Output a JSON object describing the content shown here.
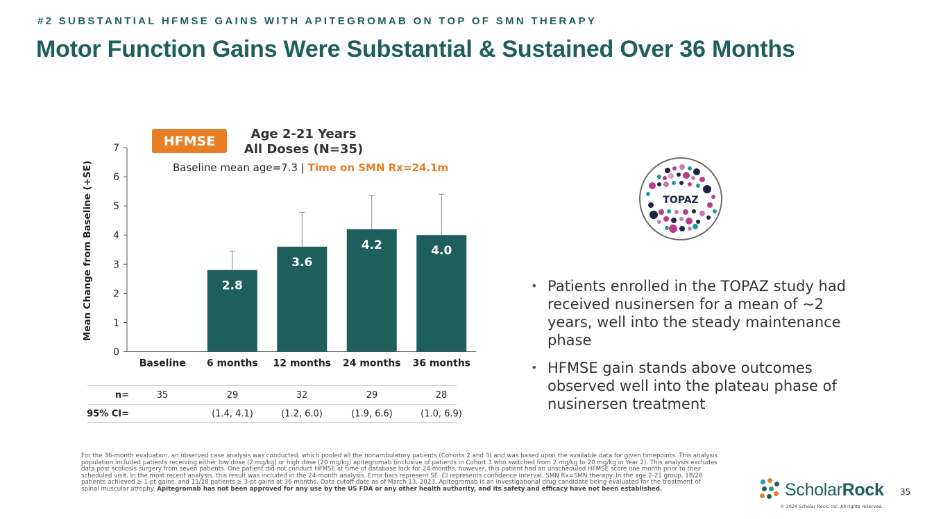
{
  "header": {
    "kicker": "#2 SUBSTANTIAL HFMSE GAINS WITH APITEGROMAB ON TOP OF SMN THERAPY",
    "title": "Motor Function Gains Were Substantial & Sustained Over 36 Months"
  },
  "chart_header": {
    "badge": "HFMSE",
    "line1": "Age 2-21 Years",
    "line2": "All Doses (N=35)",
    "baseline_text": "Baseline mean age=7.3 | ",
    "baseline_highlight": "Time on SMN Rx=24.1m"
  },
  "chart_data": {
    "type": "bar",
    "title": "Age 2-21 Years All Doses (N=35)",
    "xlabel": "",
    "ylabel": "Mean Change from Baseline (+SE)",
    "ylim": [
      0,
      7
    ],
    "yticks": [
      "0",
      "1",
      "2",
      "3",
      "4",
      "5",
      "6",
      "7"
    ],
    "categories": [
      "Baseline",
      "6 months",
      "12 months",
      "24 months",
      "36 months"
    ],
    "values": [
      0,
      2.8,
      3.6,
      4.2,
      4.0
    ],
    "value_labels": [
      "",
      "2.8",
      "3.6",
      "4.2",
      "4.0"
    ],
    "error_upper": [
      null,
      3.45,
      4.78,
      5.35,
      5.4
    ],
    "bar_color": "#1e5e5b",
    "error_bar_color": "#888888",
    "grid": false
  },
  "n_table": {
    "n_label": "n=",
    "n_values": [
      "35",
      "29",
      "32",
      "29",
      "28"
    ],
    "ci_label": "95% CI=",
    "ci_values": [
      "",
      "(1.4, 4.1)",
      "(1.2, 6.0)",
      "(1.9, 6.6)",
      "(1.0, 6.9)"
    ]
  },
  "logo": {
    "label": "TOPAZ"
  },
  "bullets": [
    "Patients enrolled in the TOPAZ study had received nusinersen for a mean of ~2 years, well into the steady maintenance phase",
    "HFMSE gain stands above outcomes observed well into the plateau phase of nusinersen treatment"
  ],
  "footnote": {
    "text": "For the 36-month evaluation, an observed case analysis was conducted, which pooled all the nonambulatory patients (Cohorts 2 and 3) and was based upon the available data for given timepoints. This analysis population included patients receiving either low dose (2 mg/kg) or high dose (20 mg/kg) apitegromab (inclusive of patients in Cohort 3 who switched from 2 mg/kg to 20 mg/kg in Year 2). This analysis excludes data post scoliosis surgery from seven patients. One patient did not conduct HFMSE at time of database lock for 24 months, however, this patient had an unscheduled HFMSE score one month prior to their scheduled visit. In the most recent analysis, this result was included in the 24-month analysis. Error bars represent SE. CI represents confidence interval. SMN Rx=SMN therapy. In the age 2-21 group, 18/28 patients achieved ≥ 1-pt gains, and 11/28 patients ≥ 3-pt gains at 36 months. Data cutoff date as of March 13, 2023. Apitegromab is an investigational drug candidate being evaluated for the treatment of spinal muscular atrophy. ",
    "bold": "Apitegromab has not been approved for any use by the US FDA or any other  health authority, and its safety and efficacy have not been established."
  },
  "brand": {
    "name_part1": "Scholar",
    "name_part2": "Rock",
    "copyright": "© 2024 Scholar Rock, Inc. All rights reserved."
  },
  "page_number": "35",
  "colors": {
    "teal": "#1e5e5b",
    "orange": "#e97e25"
  }
}
